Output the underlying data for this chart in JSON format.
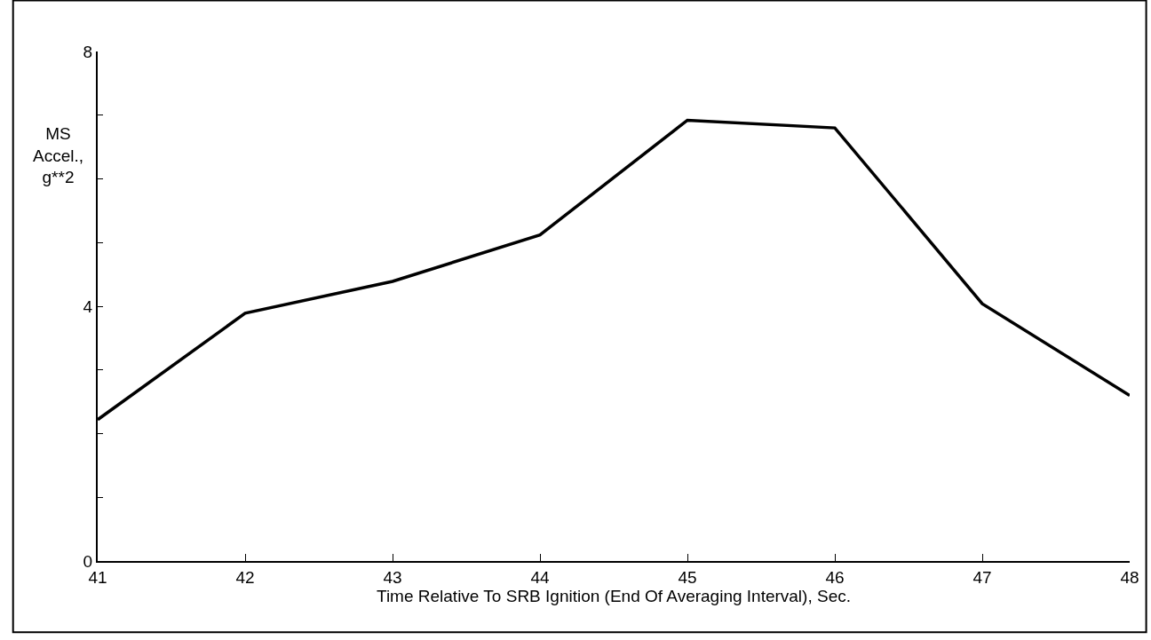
{
  "chart_data": {
    "type": "line",
    "xlabel": "Time Relative To SRB Ignition (End Of Averaging Interval), Sec.",
    "ylabel": "MS Accel., g**2",
    "x": [
      41,
      42,
      43,
      44,
      45,
      46,
      47,
      48
    ],
    "series": [
      {
        "color": "#000000",
        "values": [
          2.22,
          3.89,
          4.39,
          5.12,
          6.92,
          6.8,
          4.04,
          2.6
        ]
      }
    ],
    "xlim": [
      41,
      48
    ],
    "xticks": [
      41,
      42,
      43,
      44,
      45,
      46,
      47,
      48
    ],
    "ylim": [
      0,
      8
    ],
    "yticks": [
      0,
      {
        "value": 1,
        "label": null
      },
      {
        "value": 2,
        "label": null
      },
      {
        "value": 3,
        "label": null
      },
      4,
      {
        "value": 5,
        "label": null
      },
      {
        "value": 6,
        "label": null
      },
      {
        "value": 7,
        "label": null
      },
      8
    ],
    "marker": "none",
    "line_style": "solid"
  }
}
